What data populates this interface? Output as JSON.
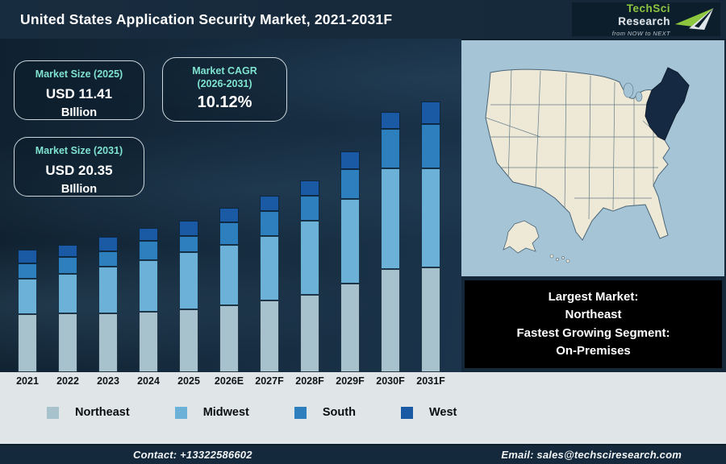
{
  "header": {
    "title": "United States Application Security Market, 2021-2031F",
    "logo": {
      "brand_primary": "TechSci",
      "brand_secondary": "Research",
      "tagline": "from NOW to NEXT"
    }
  },
  "info_boxes": [
    {
      "label": "Market Size (2025)",
      "value": "USD 11.41",
      "unit": "BIllion"
    },
    {
      "label": "Market CAGR",
      "label2": "(2026-2031)",
      "value": "10.12%"
    },
    {
      "label": "Market Size (2031)",
      "value": "USD 20.35",
      "unit": "BIllion"
    }
  ],
  "chart_data": {
    "type": "bar",
    "stacked": true,
    "title": "United States Application Security Market, 2021-2031F",
    "unit": "USD Billion",
    "categories": [
      "2021",
      "2022",
      "2023",
      "2024",
      "2025",
      "2026E",
      "2027F",
      "2028F",
      "2029F",
      "2030F",
      "2031F"
    ],
    "series": [
      {
        "name": "Northeast",
        "color": "#a7c2cd",
        "values": [
          4.35,
          4.4,
          4.45,
          4.55,
          4.71,
          5.05,
          5.4,
          5.85,
          6.7,
          7.75,
          7.9
        ]
      },
      {
        "name": "Midwest",
        "color": "#6cb2d8",
        "values": [
          2.7,
          3.0,
          3.5,
          3.85,
          4.3,
          4.55,
          4.85,
          5.55,
          6.35,
          7.6,
          7.45
        ]
      },
      {
        "name": "South",
        "color": "#2d7fbd",
        "values": [
          1.15,
          1.3,
          1.15,
          1.5,
          1.25,
          1.65,
          1.85,
          1.85,
          2.25,
          2.95,
          3.3
        ]
      },
      {
        "name": "West",
        "color": "#1a5aa5",
        "values": [
          1.0,
          0.9,
          1.1,
          0.95,
          1.15,
          1.1,
          1.15,
          1.2,
          1.3,
          1.25,
          1.7
        ]
      }
    ],
    "totals_labeled": {
      "2025": 11.41,
      "2031F": 20.35
    },
    "ylim": [
      0,
      22
    ],
    "grid": false,
    "legend_position": "bottom"
  },
  "callout": {
    "lines": [
      "Largest Market:",
      "Northeast",
      "Fastest Growing Segment:",
      "On-Premises"
    ]
  },
  "map": {
    "highlight_region": "Northeast"
  },
  "footer": {
    "contact": "Contact: +13322586602",
    "email": "Email: sales@techsciresearch.com"
  },
  "colors": {
    "brand_green": "#8dc63f",
    "navy_background": "#15283a",
    "map_water": "#a5c4d5",
    "map_land": "#eee9d6",
    "map_highlight": "#152a42",
    "accent_teal": "#7fe3cf"
  }
}
